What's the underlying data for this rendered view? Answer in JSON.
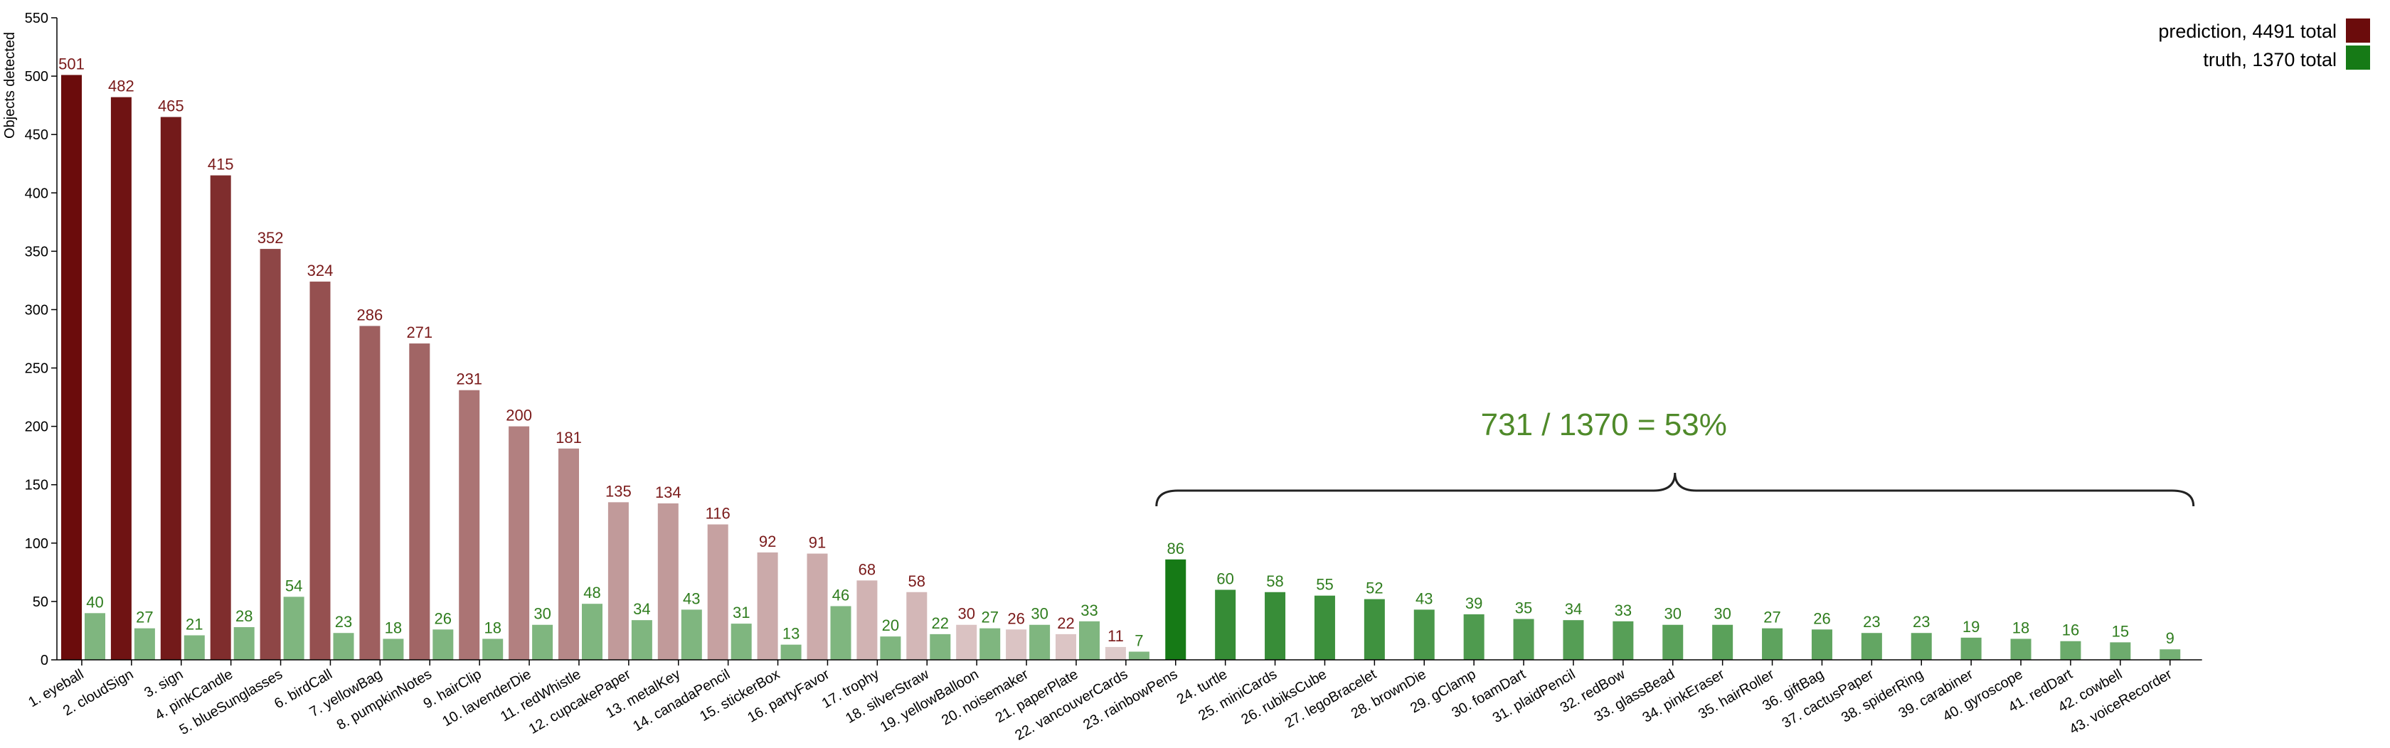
{
  "chart_data": {
    "type": "bar",
    "title": "",
    "xlabel": "",
    "ylabel": "Objects detected",
    "ylim": [
      0,
      550
    ],
    "yticks": [
      0,
      50,
      100,
      150,
      200,
      250,
      300,
      350,
      400,
      450,
      500,
      550
    ],
    "grid": false,
    "legend_position": "top-right",
    "categories": [
      "1. eyeball",
      "2. cloudSign",
      "3. sign",
      "4. pinkCandle",
      "5. blueSunglasses",
      "6. birdCall",
      "7. yellowBag",
      "8. pumpkinNotes",
      "9. hairClip",
      "10. lavenderDie",
      "11. redWhistle",
      "12. cupcakePaper",
      "13. metalKey",
      "14. canadaPencil",
      "15. stickerBox",
      "16. partyFavor",
      "17. trophy",
      "18. silverStraw",
      "19. yellowBalloon",
      "20. noisemaker",
      "21. paperPlate",
      "22. vancouverCards",
      "23. rainbowPens",
      "24. turtle",
      "25. miniCards",
      "26. rubiksCube",
      "27. legoBracelet",
      "28. brownDie",
      "29. gClamp",
      "30. foamDart",
      "31. plaidPencil",
      "32. redBow",
      "33. glassBead",
      "34. pinkEraser",
      "35. hairRoller",
      "36. giftBag",
      "37. cactusPaper",
      "38. spiderRing",
      "39. carabiner",
      "40. gyroscope",
      "41. redDart",
      "42. cowbell",
      "43. voiceRecorder"
    ],
    "series": [
      {
        "name": "prediction, 4491 total",
        "color": "#6b0c0c",
        "values": [
          501,
          482,
          465,
          415,
          352,
          324,
          286,
          271,
          231,
          200,
          181,
          135,
          134,
          116,
          92,
          91,
          68,
          58,
          30,
          26,
          22,
          11,
          null,
          null,
          null,
          null,
          null,
          null,
          null,
          null,
          null,
          null,
          null,
          null,
          null,
          null,
          null,
          null,
          null,
          null,
          null,
          null,
          null
        ]
      },
      {
        "name": "truth, 1370 total",
        "color": "#167a16",
        "values": [
          40,
          27,
          21,
          28,
          54,
          23,
          18,
          26,
          18,
          30,
          48,
          34,
          43,
          31,
          13,
          46,
          20,
          22,
          27,
          30,
          33,
          7,
          86,
          60,
          58,
          55,
          52,
          43,
          39,
          35,
          34,
          33,
          30,
          30,
          27,
          26,
          23,
          23,
          19,
          18,
          16,
          15,
          9
        ]
      }
    ],
    "colors": {
      "prediction_label": "#7a1a1a",
      "truth_label": "#2f7d1e",
      "annotation": "#4f8a2a",
      "brace": "#222222"
    },
    "annotation": {
      "text": "731 / 1370 = 53%",
      "span_from_category": "23. rainbowPens",
      "span_to_category": "43. voiceRecorder"
    }
  }
}
